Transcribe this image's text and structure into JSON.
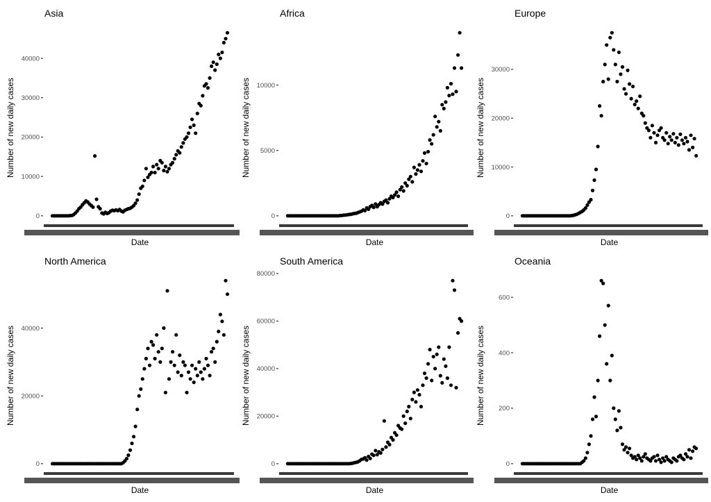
{
  "chart_data": {
    "type": "scatter",
    "xlabel": "Date",
    "ylabel": "Number of new daily cases",
    "point_color": "#000000",
    "panels": [
      {
        "title": "Asia",
        "ylim": [
          -2325,
          48825
        ],
        "yticks": [
          0,
          10000,
          20000,
          30000,
          40000
        ],
        "values": [
          0,
          0,
          0,
          0,
          0,
          0,
          0,
          0,
          0,
          0,
          50,
          100,
          300,
          700,
          1200,
          1800,
          2200,
          2800,
          3300,
          3800,
          3500,
          3000,
          2600,
          2200,
          15200,
          4200,
          2300,
          1800,
          700,
          500,
          900,
          600,
          800,
          1200,
          1400,
          1300,
          1500,
          1300,
          1600,
          1200,
          1000,
          1400,
          1600,
          1800,
          1900,
          2200,
          2600,
          3200,
          4000,
          5500,
          7000,
          7500,
          9000,
          12000,
          9800,
          10500,
          11000,
          12500,
          11000,
          13000,
          12000,
          14000,
          13500,
          11500,
          12500,
          11200,
          12000,
          13000,
          13500,
          14500,
          15500,
          16500,
          16000,
          17500,
          18500,
          19500,
          20000,
          21000,
          22500,
          24500,
          23000,
          21000,
          26000,
          28500,
          28000,
          30500,
          33000,
          33500,
          32500,
          35000,
          38000,
          39000,
          37000,
          38500,
          41000,
          40000,
          41500,
          44000,
          45000,
          46500
        ]
      },
      {
        "title": "Africa",
        "ylim": [
          -700,
          14700
        ],
        "yticks": [
          0,
          5000,
          10000
        ],
        "values": [
          0,
          0,
          0,
          0,
          0,
          0,
          0,
          0,
          0,
          0,
          0,
          0,
          0,
          0,
          0,
          0,
          0,
          0,
          0,
          0,
          0,
          0,
          0,
          0,
          0,
          0,
          0,
          0,
          0,
          0,
          20,
          30,
          50,
          60,
          80,
          100,
          120,
          150,
          180,
          200,
          250,
          300,
          350,
          450,
          400,
          600,
          500,
          700,
          800,
          650,
          900,
          700,
          850,
          1000,
          900,
          1100,
          1200,
          1000,
          1300,
          1500,
          1400,
          1600,
          1800,
          1500,
          2000,
          2200,
          1900,
          2500,
          2300,
          2800,
          3000,
          2600,
          3700,
          3200,
          3500,
          3900,
          3400,
          4200,
          4800,
          4000,
          4900,
          5800,
          5500,
          6200,
          7600,
          6800,
          7200,
          6500,
          8500,
          8200,
          8700,
          9800,
          9200,
          10100,
          9300,
          11300,
          9500,
          12300,
          14000,
          11300
        ]
      },
      {
        "title": "Europe",
        "ylim": [
          -1875,
          39375
        ],
        "yticks": [
          0,
          10000,
          20000,
          30000
        ],
        "values": [
          0,
          0,
          0,
          0,
          0,
          0,
          0,
          0,
          0,
          0,
          0,
          0,
          0,
          0,
          0,
          0,
          0,
          0,
          0,
          0,
          0,
          0,
          0,
          0,
          0,
          0,
          0,
          0,
          50,
          100,
          200,
          300,
          500,
          700,
          900,
          1200,
          1600,
          2200,
          2800,
          3300,
          5200,
          7300,
          9500,
          14200,
          22500,
          20500,
          27500,
          31000,
          35000,
          28000,
          36500,
          37500,
          34000,
          31000,
          27500,
          33500,
          29000,
          30500,
          26000,
          25000,
          29800,
          27000,
          24000,
          26500,
          22800,
          23500,
          22000,
          24500,
          21000,
          20500,
          19000,
          18000,
          17500,
          16000,
          18500,
          17000,
          15000,
          16500,
          17500,
          18000,
          16000,
          15500,
          17000,
          14800,
          16200,
          15500,
          16800,
          15000,
          16000,
          14500,
          16700,
          15500,
          14800,
          16000,
          15200,
          13500,
          16500,
          14000,
          15800,
          12300
        ]
      },
      {
        "title": "North America",
        "ylim": [
          -2700,
          56700
        ],
        "yticks": [
          0,
          20000,
          40000
        ],
        "values": [
          0,
          0,
          0,
          0,
          0,
          0,
          0,
          0,
          0,
          0,
          0,
          0,
          0,
          0,
          0,
          0,
          0,
          0,
          0,
          0,
          0,
          0,
          0,
          0,
          0,
          0,
          0,
          0,
          0,
          0,
          0,
          0,
          0,
          0,
          0,
          0,
          0,
          0,
          0,
          0,
          300,
          800,
          1500,
          2500,
          4000,
          6000,
          8000,
          11000,
          16000,
          20000,
          22000,
          25000,
          28000,
          31000,
          34000,
          29000,
          36000,
          35000,
          31000,
          38000,
          33000,
          30000,
          34000,
          40000,
          21000,
          51000,
          25000,
          30000,
          33000,
          29000,
          38000,
          27000,
          32000,
          26000,
          30000,
          29000,
          21000,
          27000,
          25000,
          29000,
          24000,
          28000,
          26000,
          30000,
          27000,
          25000,
          28000,
          31000,
          29000,
          26000,
          33000,
          34000,
          30000,
          36000,
          39000,
          44000,
          42000,
          38000,
          54000,
          50000
        ]
      },
      {
        "title": "South America",
        "ylim": [
          -3850,
          80850
        ],
        "yticks": [
          0,
          20000,
          40000,
          60000,
          80000
        ],
        "values": [
          0,
          0,
          0,
          0,
          0,
          0,
          0,
          0,
          0,
          0,
          0,
          0,
          0,
          0,
          0,
          0,
          0,
          0,
          0,
          0,
          0,
          0,
          0,
          0,
          0,
          0,
          0,
          0,
          0,
          0,
          0,
          0,
          0,
          0,
          0,
          0,
          100,
          200,
          400,
          600,
          800,
          1200,
          1800,
          2000,
          2500,
          1500,
          3000,
          2200,
          4000,
          3500,
          5500,
          3800,
          5000,
          4500,
          6000,
          18000,
          7000,
          9000,
          8000,
          11000,
          10000,
          13000,
          12000,
          16000,
          15000,
          14500,
          20000,
          17000,
          22000,
          24000,
          19000,
          27000,
          30000,
          26000,
          31000,
          29000,
          24000,
          33000,
          38000,
          36000,
          42000,
          48000,
          35000,
          45000,
          40000,
          46000,
          49000,
          37000,
          34000,
          44000,
          41000,
          36000,
          49000,
          33000,
          77000,
          73000,
          32000,
          55000,
          61000,
          60000
        ]
      },
      {
        "title": "Oceania",
        "ylim": [
          -33,
          693
        ],
        "yticks": [
          0,
          200,
          400,
          600
        ],
        "values": [
          0,
          0,
          0,
          0,
          0,
          0,
          0,
          0,
          0,
          0,
          0,
          0,
          0,
          0,
          0,
          0,
          0,
          0,
          0,
          0,
          0,
          0,
          0,
          0,
          0,
          0,
          0,
          0,
          0,
          0,
          0,
          0,
          0,
          0,
          5,
          10,
          20,
          40,
          70,
          100,
          160,
          240,
          170,
          300,
          460,
          660,
          650,
          500,
          360,
          570,
          300,
          390,
          200,
          160,
          120,
          190,
          130,
          70,
          50,
          60,
          40,
          55,
          30,
          20,
          25,
          15,
          30,
          20,
          10,
          25,
          35,
          20,
          15,
          10,
          20,
          25,
          10,
          30,
          15,
          5,
          20,
          10,
          25,
          15,
          10,
          5,
          20,
          15,
          10,
          25,
          30,
          20,
          15,
          35,
          25,
          50,
          20,
          45,
          60,
          55
        ]
      }
    ]
  }
}
